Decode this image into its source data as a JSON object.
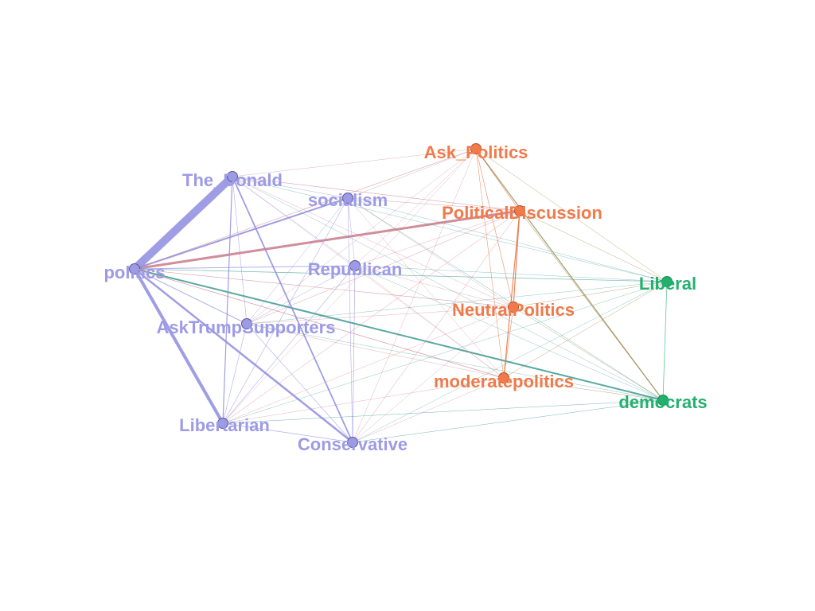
{
  "groups": {
    "blue": {
      "color": "#9d9ae6",
      "stroke": "#5c5a8c"
    },
    "orange": {
      "color": "#f07a4a",
      "stroke": "#b5502a"
    },
    "green": {
      "color": "#23b06e",
      "stroke": "#168a52"
    }
  },
  "nodes": [
    {
      "id": "politics",
      "label": "politics",
      "group": "blue"
    },
    {
      "id": "The_Donald",
      "label": "The_Donald",
      "group": "blue"
    },
    {
      "id": "socialism",
      "label": "socialism",
      "group": "blue"
    },
    {
      "id": "Republican",
      "label": "Republican",
      "group": "blue"
    },
    {
      "id": "AskTrumpSupporters",
      "label": "AskTrumpSupporters",
      "group": "blue"
    },
    {
      "id": "Libertarian",
      "label": "Libertarian",
      "group": "blue"
    },
    {
      "id": "Conservative",
      "label": "Conservative",
      "group": "blue"
    },
    {
      "id": "Ask_Politics",
      "label": "Ask_Politics",
      "group": "orange"
    },
    {
      "id": "PoliticalDiscussion",
      "label": "PoliticalDiscussion",
      "group": "orange"
    },
    {
      "id": "NeutralPolitics",
      "label": "NeutralPolitics",
      "group": "orange"
    },
    {
      "id": "moderatepolitics",
      "label": "moderatepolitics",
      "group": "orange"
    },
    {
      "id": "Liberal",
      "label": "Liberal",
      "group": "green"
    },
    {
      "id": "democrats",
      "label": "democrats",
      "group": "green"
    }
  ],
  "edges": [
    {
      "source": "politics",
      "target": "The_Donald",
      "weight": 10
    },
    {
      "source": "politics",
      "target": "PoliticalDiscussion",
      "weight": 3
    },
    {
      "source": "politics",
      "target": "socialism",
      "weight": 2
    },
    {
      "source": "politics",
      "target": "Libertarian",
      "weight": 4
    },
    {
      "source": "politics",
      "target": "Conservative",
      "weight": 2.5
    },
    {
      "source": "politics",
      "target": "democrats",
      "weight": 2
    },
    {
      "source": "politics",
      "target": "AskTrumpSupporters",
      "weight": 1
    },
    {
      "source": "politics",
      "target": "Republican",
      "weight": 1
    },
    {
      "source": "politics",
      "target": "Ask_Politics",
      "weight": 0.6
    },
    {
      "source": "politics",
      "target": "NeutralPolitics",
      "weight": 0.6
    },
    {
      "source": "politics",
      "target": "moderatepolitics",
      "weight": 0.8
    },
    {
      "source": "politics",
      "target": "Liberal",
      "weight": 0.7
    },
    {
      "source": "The_Donald",
      "target": "Conservative",
      "weight": 1.8
    },
    {
      "source": "The_Donald",
      "target": "Libertarian",
      "weight": 1.2
    },
    {
      "source": "The_Donald",
      "target": "AskTrumpSupporters",
      "weight": 0.6
    },
    {
      "source": "The_Donald",
      "target": "socialism",
      "weight": 0.5
    },
    {
      "source": "The_Donald",
      "target": "Republican",
      "weight": 0.5
    },
    {
      "source": "The_Donald",
      "target": "Ask_Politics",
      "weight": 0.4
    },
    {
      "source": "The_Donald",
      "target": "PoliticalDiscussion",
      "weight": 0.6
    },
    {
      "source": "The_Donald",
      "target": "NeutralPolitics",
      "weight": 0.4
    },
    {
      "source": "The_Donald",
      "target": "moderatepolitics",
      "weight": 0.4
    },
    {
      "source": "The_Donald",
      "target": "Liberal",
      "weight": 0.4
    },
    {
      "source": "The_Donald",
      "target": "democrats",
      "weight": 0.4
    },
    {
      "source": "socialism",
      "target": "Conservative",
      "weight": 0.6
    },
    {
      "source": "socialism",
      "target": "Libertarian",
      "weight": 0.6
    },
    {
      "source": "socialism",
      "target": "AskTrumpSupporters",
      "weight": 0.5
    },
    {
      "source": "socialism",
      "target": "Republican",
      "weight": 0.5
    },
    {
      "source": "socialism",
      "target": "Ask_Politics",
      "weight": 0.4
    },
    {
      "source": "socialism",
      "target": "PoliticalDiscussion",
      "weight": 0.5
    },
    {
      "source": "socialism",
      "target": "NeutralPolitics",
      "weight": 0.4
    },
    {
      "source": "socialism",
      "target": "moderatepolitics",
      "weight": 0.4
    },
    {
      "source": "socialism",
      "target": "Liberal",
      "weight": 0.4
    },
    {
      "source": "socialism",
      "target": "democrats",
      "weight": 0.5
    },
    {
      "source": "Republican",
      "target": "Conservative",
      "weight": 0.7
    },
    {
      "source": "Republican",
      "target": "Libertarian",
      "weight": 0.6
    },
    {
      "source": "Republican",
      "target": "AskTrumpSupporters",
      "weight": 0.5
    },
    {
      "source": "Republican",
      "target": "Ask_Politics",
      "weight": 0.4
    },
    {
      "source": "Republican",
      "target": "PoliticalDiscussion",
      "weight": 0.4
    },
    {
      "source": "Republican",
      "target": "NeutralPolitics",
      "weight": 0.4
    },
    {
      "source": "Republican",
      "target": "moderatepolitics",
      "weight": 0.4
    },
    {
      "source": "Republican",
      "target": "Liberal",
      "weight": 0.4
    },
    {
      "source": "Republican",
      "target": "democrats",
      "weight": 0.4
    },
    {
      "source": "AskTrumpSupporters",
      "target": "Conservative",
      "weight": 0.6
    },
    {
      "source": "AskTrumpSupporters",
      "target": "Libertarian",
      "weight": 0.6
    },
    {
      "source": "AskTrumpSupporters",
      "target": "Ask_Politics",
      "weight": 0.4
    },
    {
      "source": "AskTrumpSupporters",
      "target": "PoliticalDiscussion",
      "weight": 0.5
    },
    {
      "source": "AskTrumpSupporters",
      "target": "NeutralPolitics",
      "weight": 0.4
    },
    {
      "source": "AskTrumpSupporters",
      "target": "moderatepolitics",
      "weight": 0.4
    },
    {
      "source": "AskTrumpSupporters",
      "target": "Liberal",
      "weight": 0.4
    },
    {
      "source": "AskTrumpSupporters",
      "target": "democrats",
      "weight": 0.4
    },
    {
      "source": "Libertarian",
      "target": "Conservative",
      "weight": 0.8
    },
    {
      "source": "Libertarian",
      "target": "Ask_Politics",
      "weight": 0.4
    },
    {
      "source": "Libertarian",
      "target": "PoliticalDiscussion",
      "weight": 0.5
    },
    {
      "source": "Libertarian",
      "target": "NeutralPolitics",
      "weight": 0.4
    },
    {
      "source": "Libertarian",
      "target": "moderatepolitics",
      "weight": 0.4
    },
    {
      "source": "Libertarian",
      "target": "Liberal",
      "weight": 0.4
    },
    {
      "source": "Libertarian",
      "target": "democrats",
      "weight": 0.5
    },
    {
      "source": "Conservative",
      "target": "Ask_Politics",
      "weight": 0.4
    },
    {
      "source": "Conservative",
      "target": "PoliticalDiscussion",
      "weight": 0.5
    },
    {
      "source": "Conservative",
      "target": "NeutralPolitics",
      "weight": 0.4
    },
    {
      "source": "Conservative",
      "target": "moderatepolitics",
      "weight": 0.4
    },
    {
      "source": "Conservative",
      "target": "Liberal",
      "weight": 0.4
    },
    {
      "source": "Conservative",
      "target": "democrats",
      "weight": 0.5
    },
    {
      "source": "Ask_Politics",
      "target": "PoliticalDiscussion",
      "weight": 0.8
    },
    {
      "source": "Ask_Politics",
      "target": "NeutralPolitics",
      "weight": 0.7
    },
    {
      "source": "Ask_Politics",
      "target": "moderatepolitics",
      "weight": 0.6
    },
    {
      "source": "Ask_Politics",
      "target": "democrats",
      "weight": 1.2
    },
    {
      "source": "Ask_Politics",
      "target": "Liberal",
      "weight": 0.5
    },
    {
      "source": "PoliticalDiscussion",
      "target": "NeutralPolitics",
      "weight": 1.2
    },
    {
      "source": "PoliticalDiscussion",
      "target": "moderatepolitics",
      "weight": 1.2
    },
    {
      "source": "PoliticalDiscussion",
      "target": "democrats",
      "weight": 0.6
    },
    {
      "source": "PoliticalDiscussion",
      "target": "Liberal",
      "weight": 0.5
    },
    {
      "source": "NeutralPolitics",
      "target": "moderatepolitics",
      "weight": 0.7
    },
    {
      "source": "NeutralPolitics",
      "target": "democrats",
      "weight": 0.5
    },
    {
      "source": "NeutralPolitics",
      "target": "Liberal",
      "weight": 0.5
    },
    {
      "source": "moderatepolitics",
      "target": "democrats",
      "weight": 0.5
    },
    {
      "source": "moderatepolitics",
      "target": "Liberal",
      "weight": 0.5
    },
    {
      "source": "Liberal",
      "target": "democrats",
      "weight": 0.8
    }
  ]
}
